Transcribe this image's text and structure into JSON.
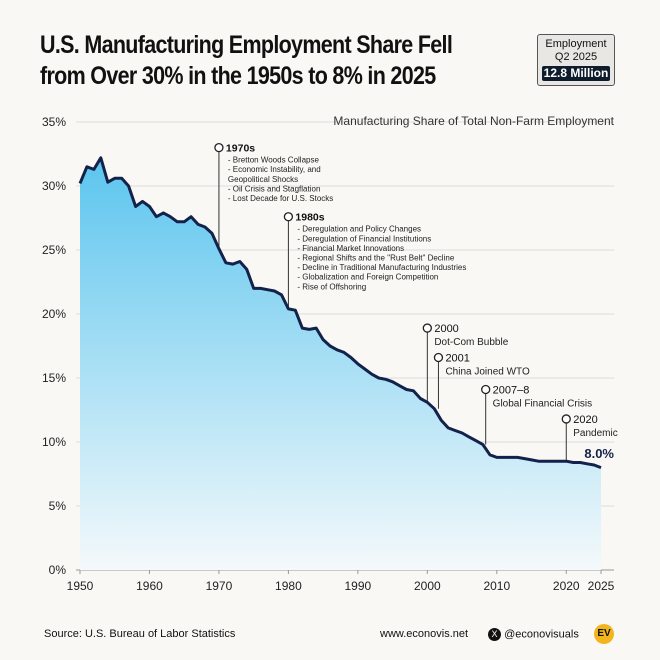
{
  "title_line1": "U.S. Manufacturing Employment Share Fell",
  "title_line2": "from Over 30% in the 1950s to 8% in 2025",
  "badge": {
    "label1": "Employment",
    "label2": "Q2 2025",
    "value": "12.8 Million"
  },
  "footer": {
    "source": "Source: U.S. Bureau of Labor Statistics",
    "website": "www.econovis.net",
    "social": "@econovisuals",
    "logo": "EV"
  },
  "colors": {
    "line": "#13224a",
    "fill_top": "#5cc5ee",
    "fill_bottom": "#f4f9fb",
    "grid": "#dddddd"
  },
  "chart_data": {
    "type": "area",
    "title": "Manufacturing Share of Total Non-Farm Employment",
    "xlabel": "",
    "ylabel": "",
    "xlim": [
      1950,
      2025
    ],
    "ylim": [
      0,
      35
    ],
    "xticks": [
      "1950",
      "1960",
      "1970",
      "1980",
      "1990",
      "2000",
      "2010",
      "2020",
      "2025"
    ],
    "yticks": [
      "0%",
      "5%",
      "10%",
      "15%",
      "20%",
      "25%",
      "30%",
      "35%"
    ],
    "grid": true,
    "end_label": "8.0%",
    "x": [
      1950,
      1951,
      1952,
      1953,
      1954,
      1955,
      1956,
      1957,
      1958,
      1959,
      1960,
      1961,
      1962,
      1963,
      1964,
      1965,
      1966,
      1967,
      1968,
      1969,
      1970,
      1971,
      1972,
      1973,
      1974,
      1975,
      1976,
      1977,
      1978,
      1979,
      1980,
      1981,
      1982,
      1983,
      1984,
      1985,
      1986,
      1987,
      1988,
      1989,
      1990,
      1991,
      1992,
      1993,
      1994,
      1995,
      1996,
      1997,
      1998,
      1999,
      2000,
      2001,
      2002,
      2003,
      2004,
      2005,
      2006,
      2007,
      2008,
      2009,
      2010,
      2011,
      2012,
      2013,
      2014,
      2015,
      2016,
      2017,
      2018,
      2019,
      2020,
      2021,
      2022,
      2023,
      2024,
      2025
    ],
    "values": [
      30.2,
      31.5,
      31.3,
      32.2,
      30.3,
      30.6,
      30.6,
      30.0,
      28.4,
      28.8,
      28.4,
      27.6,
      27.9,
      27.6,
      27.2,
      27.2,
      27.6,
      27.0,
      26.8,
      26.3,
      25.1,
      24.0,
      23.9,
      24.1,
      23.5,
      22.0,
      22.0,
      21.9,
      21.8,
      21.5,
      20.4,
      20.3,
      18.9,
      18.8,
      18.9,
      18.0,
      17.5,
      17.2,
      17.0,
      16.6,
      16.1,
      15.7,
      15.3,
      15.0,
      14.9,
      14.7,
      14.4,
      14.1,
      14.0,
      13.4,
      13.1,
      12.6,
      11.7,
      11.1,
      10.9,
      10.7,
      10.4,
      10.1,
      9.8,
      9.0,
      8.8,
      8.8,
      8.8,
      8.8,
      8.7,
      8.6,
      8.5,
      8.5,
      8.5,
      8.5,
      8.5,
      8.4,
      8.4,
      8.3,
      8.2,
      8.0
    ],
    "annotations": [
      {
        "year": 1970,
        "level": 33,
        "title": "1970s",
        "lines": [
          "- Bretton Woods Collapse",
          "- Economic Instability, and",
          "  Geopolitical Shocks",
          "- Oil Crisis and Stagflation",
          "- Lost Decade for U.S. Stocks"
        ]
      },
      {
        "year": 1980,
        "level": 27.6,
        "title": "1980s",
        "lines": [
          "- Deregulation and Policy Changes",
          "- Deregulation of Financial Institutions",
          "- Financial Market Innovations",
          "- Regional Shifts and the \"Rust Belt\" Decline",
          "- Decline in Traditional Manufacturing Industries",
          "- Globalization and Foreign Competition",
          "- Rise of Offshoring"
        ]
      },
      {
        "year": 2000,
        "level": 18.9,
        "title": "2000",
        "lines": [
          "Dot-Com Bubble"
        ]
      },
      {
        "year": 2001.6,
        "level": 16.6,
        "title": "2001",
        "lines": [
          "China Joined WTO"
        ]
      },
      {
        "year": 2008.4,
        "level": 14.1,
        "title": "2007–8",
        "lines": [
          "Global Financial Crisis"
        ]
      },
      {
        "year": 2020,
        "level": 11.8,
        "title": "2020",
        "lines": [
          "Pandemic"
        ]
      }
    ]
  }
}
